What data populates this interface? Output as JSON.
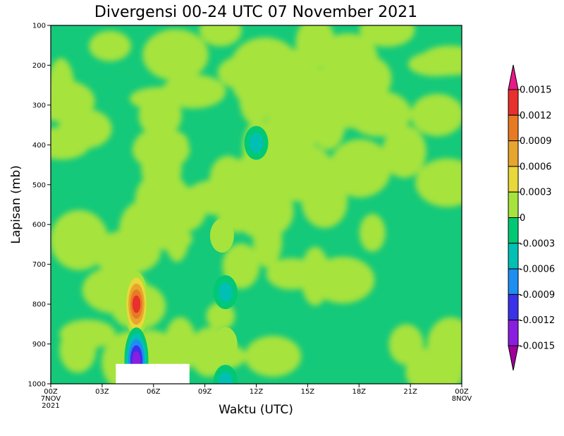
{
  "chart_data": {
    "type": "heatmap",
    "title": "Divergensi 00-24 UTC 07 November 2021",
    "xlabel": "Waktu (UTC)",
    "ylabel": "Lapisan (mb)",
    "x_ticks": [
      "00Z",
      "03Z",
      "06Z",
      "09Z",
      "12Z",
      "15Z",
      "18Z",
      "21Z",
      "00Z"
    ],
    "x_start_label": [
      "7NOV",
      "2021"
    ],
    "x_end_label": [
      "8NOV"
    ],
    "x_range_hours": [
      0,
      24
    ],
    "y_ticks": [
      100,
      200,
      300,
      400,
      500,
      600,
      700,
      800,
      900,
      1000
    ],
    "y_range": [
      1000,
      100
    ],
    "colorbar": {
      "ticks": [
        "0.0015",
        "0.0012",
        "0.0009",
        "0.0006",
        "0.0003",
        "0",
        "-0.0003",
        "-0.0006",
        "-0.0009",
        "-0.0012",
        "-0.0015"
      ],
      "colors": [
        "#e8188a",
        "#e8302c",
        "#e87a24",
        "#e8a52e",
        "#e8d83a",
        "#a6e33c",
        "#00c874",
        "#00c0b4",
        "#1e8ef0",
        "#3a32e8",
        "#8a1ee0",
        "#a0009a"
      ]
    },
    "base_field": {
      "positive_color": "#a6e33c",
      "negative_color": "#14c97a"
    },
    "features": [
      {
        "name": "max-divergence",
        "time_hour": 5.0,
        "level_mb": 800,
        "value": 0.0015
      },
      {
        "name": "min-divergence",
        "time_hour": 5.0,
        "level_mb": 940,
        "value": -0.0015
      },
      {
        "name": "negative-spot",
        "time_hour": 10.2,
        "level_mb": 770,
        "value": -0.0006
      },
      {
        "name": "positive-spot",
        "time_hour": 10.2,
        "level_mb": 900,
        "value": 0.0003
      },
      {
        "name": "negative-spot",
        "time_hour": 12.0,
        "level_mb": 395,
        "value": -0.0006
      },
      {
        "name": "positive-spot",
        "time_hour": 10.0,
        "level_mb": 628,
        "value": 0.0003
      },
      {
        "name": "negative-spot",
        "time_hour": 10.2,
        "level_mb": 995,
        "value": -0.0006
      }
    ],
    "missing_region": {
      "time_start_hour": 3.8,
      "time_end_hour": 8.1,
      "level_top_mb": 950,
      "level_bottom_mb": 1000
    }
  }
}
